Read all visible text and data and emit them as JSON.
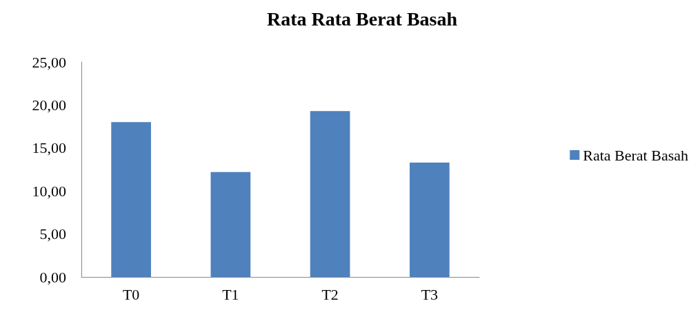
{
  "chart_data": {
    "type": "bar",
    "title": "Rata Rata Berat Basah",
    "categories": [
      "T0",
      "T1",
      "T2",
      "T3"
    ],
    "series": [
      {
        "name": "Rata Berat Basah",
        "color": "#4f81bd",
        "values": [
          18.0,
          12.2,
          19.3,
          13.3
        ]
      }
    ],
    "ylim": [
      0,
      25
    ],
    "yticks": [
      {
        "value": 0,
        "label": "0,00"
      },
      {
        "value": 5,
        "label": "5,00"
      },
      {
        "value": 10,
        "label": "10,00"
      },
      {
        "value": 15,
        "label": "15,00"
      },
      {
        "value": 20,
        "label": "20,00"
      },
      {
        "value": 25,
        "label": "25,00"
      }
    ],
    "grid": false,
    "legend": "right"
  }
}
